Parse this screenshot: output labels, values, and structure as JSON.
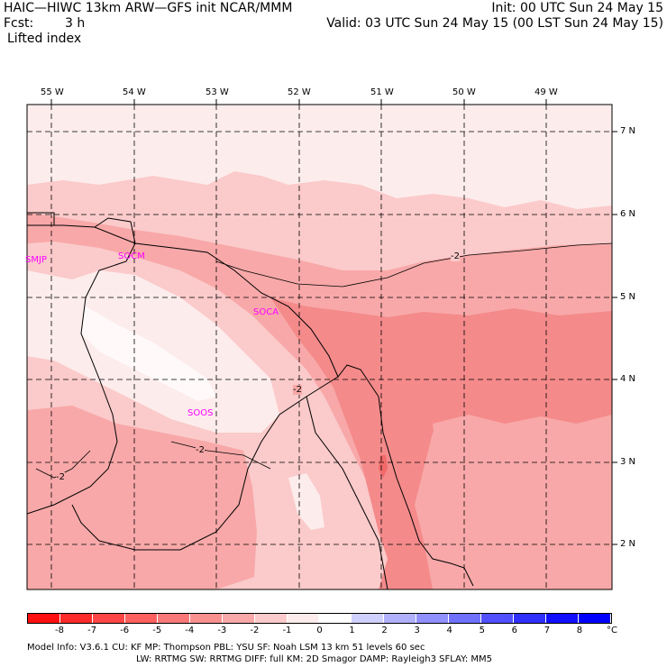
{
  "header": {
    "title_left": "HAIC—HIWC 13km ARW—GFS init   NCAR/MMM",
    "fcst_label": "Fcst:",
    "fcst_value": "3 h",
    "field": "Lifted index",
    "init": "Init: 00 UTC Sun 24 May 15",
    "valid": "Valid: 03 UTC Sun 24 May 15 (00 LST Sun 24 May 15)"
  },
  "map": {
    "lon_labels": [
      "55 W",
      "54 W",
      "53 W",
      "52 W",
      "51 W",
      "50 W",
      "49 W"
    ],
    "lat_labels": [
      "7 N",
      "6 N",
      "5 N",
      "4 N",
      "3 N",
      "2 N"
    ],
    "stations": [
      "SMJP",
      "SOCM",
      "SOCA",
      "SOOS"
    ],
    "contour_labels": [
      "-2",
      "-2",
      "-2",
      "-2"
    ],
    "fill_colors": {
      "band_0_-1": "#fdecec",
      "band_-1_-2": "#fbcaca",
      "band_-2_-3": "#f8a8a8",
      "band_-3_-4": "#f48a8a"
    }
  },
  "colorbar": {
    "labels": [
      "-8",
      "-7",
      "-6",
      "-5",
      "-4",
      "-3",
      "-2",
      "-1",
      "0",
      "1",
      "2",
      "3",
      "4",
      "5",
      "6",
      "7",
      "8"
    ],
    "unit": "°C",
    "colors": [
      "#ff1010",
      "#ff2a2a",
      "#ff4545",
      "#ff6060",
      "#f87878",
      "#f89090",
      "#f8a8a8",
      "#fbcaca",
      "#fdecec",
      "#ffffff",
      "#d0d0ff",
      "#b0b0ff",
      "#9090ff",
      "#7070ff",
      "#5050ff",
      "#3030ff",
      "#1010ff",
      "#0000ff"
    ]
  },
  "footer": {
    "line1": "Model Info: V3.6.1     CU: KF        MP: Thompson     PBL: YSU        SF: Noah LSM      13 km    51 levels   60 sec",
    "line2": "LW: RRTMG    SW: RRTMG   DIFF: full     KM: 2D Smagor DAMP: Rayleigh3  SFLAY: MM5"
  }
}
